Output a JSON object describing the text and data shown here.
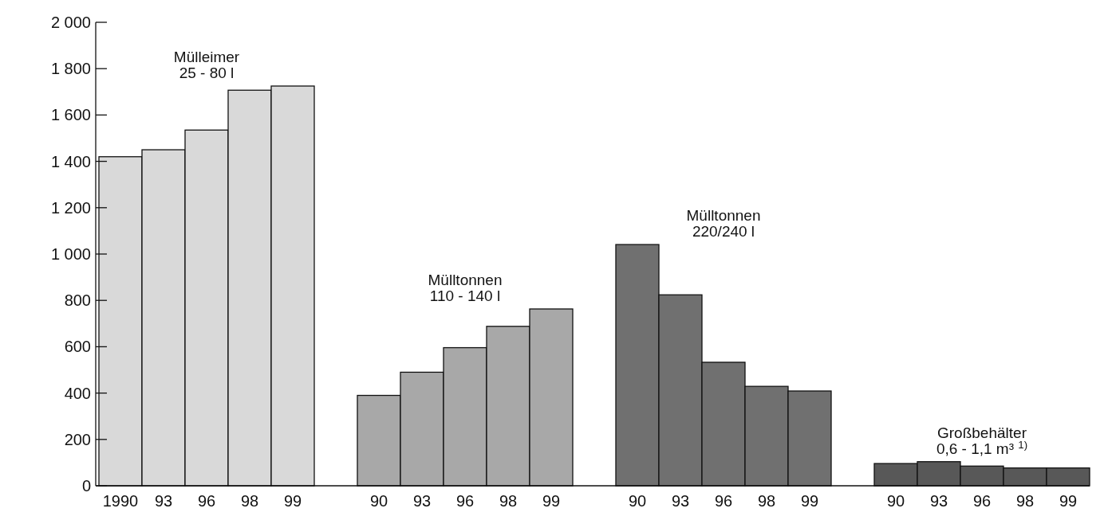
{
  "chart_data": {
    "type": "bar",
    "categories": [
      "1990",
      "93",
      "96",
      "98",
      "99",
      null,
      "90",
      "93",
      "96",
      "98",
      "99",
      null,
      "90",
      "93",
      "96",
      "98",
      "99",
      null,
      "90",
      "93",
      "96",
      "98",
      "99"
    ],
    "series": [
      {
        "name": "Mülleimer 25 - 80 l",
        "color": "#d9d9d9",
        "values": [
          1420,
          1450,
          1535,
          1707,
          1725,
          null,
          null,
          null,
          null,
          null,
          null,
          null,
          null,
          null,
          null,
          null,
          null,
          null,
          null,
          null,
          null,
          null,
          null
        ]
      },
      {
        "name": "Mülltonnen 110 - 140 l",
        "color": "#a8a8a8",
        "values": [
          null,
          null,
          null,
          null,
          null,
          null,
          390,
          490,
          596,
          688,
          763,
          null,
          null,
          null,
          null,
          null,
          null,
          null,
          null,
          null,
          null,
          null,
          null
        ]
      },
      {
        "name": "Mülltonnen 220/240 l",
        "color": "#707070",
        "values": [
          null,
          null,
          null,
          null,
          null,
          null,
          null,
          null,
          null,
          null,
          null,
          null,
          1041,
          824,
          533,
          429,
          409,
          null,
          null,
          null,
          null,
          null,
          null
        ]
      },
      {
        "name": "Großbehälter 0,6 - 1,1 m³ $^{1)}$",
        "color": "#585858",
        "values": [
          null,
          null,
          null,
          null,
          null,
          null,
          null,
          null,
          null,
          null,
          null,
          null,
          null,
          null,
          null,
          null,
          null,
          null,
          96,
          104,
          85,
          77,
          77
        ]
      }
    ],
    "ylim": [
      0,
      2000
    ],
    "yticks": [
      0,
      200,
      400,
      600,
      800,
      {
        "value": 1000,
        "label": "1 000"
      },
      {
        "value": 1200,
        "label": "1 200"
      },
      {
        "value": 1400,
        "label": "1 400"
      },
      {
        "value": 1600,
        "label": "1 600"
      },
      {
        "value": 1800,
        "label": "1 800"
      },
      {
        "value": 2000,
        "label": "2 000"
      }
    ],
    "grid": false
  }
}
